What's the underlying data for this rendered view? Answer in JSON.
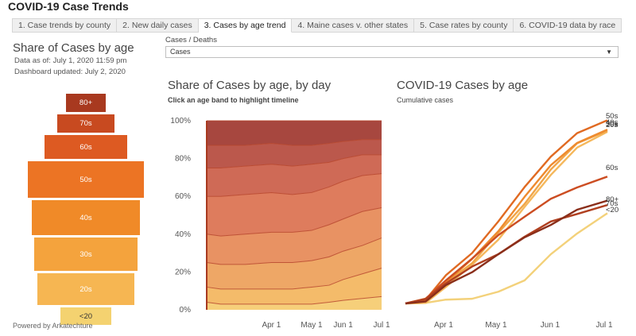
{
  "header": {
    "title": "COVID-19 Case Trends"
  },
  "tabs": [
    {
      "label": "1. Case trends by county",
      "active": false
    },
    {
      "label": "2. New daily cases",
      "active": false
    },
    {
      "label": "3. Cases by age trend",
      "active": true
    },
    {
      "label": "4. Maine cases v. other states",
      "active": false
    },
    {
      "label": "5. Case rates by county",
      "active": false
    },
    {
      "label": "6. COVID-19 data by race",
      "active": false
    }
  ],
  "left_panel": {
    "title": "Share of Cases by age",
    "data_as_of": "Data as of: July 1, 2020 11:59 pm",
    "dashboard_updated": "Dashboard updated: July 2, 2020",
    "footer": "Powered by Arkatechture",
    "pyramid": [
      {
        "label": "80+",
        "share": 0.082,
        "color": "#a8391f"
      },
      {
        "label": "70s",
        "share": 0.117,
        "color": "#c84a20"
      },
      {
        "label": "60s",
        "share": 0.168,
        "color": "#dd5a22"
      },
      {
        "label": "50s",
        "share": 0.235,
        "color": "#ec7424"
      },
      {
        "label": "40s",
        "share": 0.218,
        "color": "#f08a28"
      },
      {
        "label": "30s",
        "share": 0.21,
        "color": "#f4a33d"
      },
      {
        "label": "20s",
        "share": 0.196,
        "color": "#f6b652"
      },
      {
        "label": "<20",
        "share": 0.104,
        "color": "#f4d270"
      }
    ]
  },
  "filter": {
    "label": "Cases / Deaths",
    "selected": "Cases"
  },
  "chart_data": [
    {
      "type": "area",
      "title": "Share of Cases by age, by day",
      "subtitle": "Click an age band to highlight timeline",
      "y_tick_labels": [
        "0%",
        "20%",
        "40%",
        "60%",
        "80%",
        "100%"
      ],
      "ylim": [
        0,
        100
      ],
      "x_tick_labels": [
        "Apr 1",
        "May 1",
        "Jun 1",
        "Jul 1"
      ],
      "x": [
        "Mar 12",
        "Mar 15",
        "Mar 22",
        "Apr 1",
        "Apr 15",
        "May 1",
        "May 15",
        "Jun 1",
        "Jun 15",
        "Jul 1"
      ],
      "series_order_bottom_to_top": [
        "<20",
        "20s",
        "30s",
        "40s",
        "50s",
        "60s",
        "70s",
        "80+"
      ],
      "cumulative_upper_percent": [
        [
          4,
          3,
          3,
          3,
          3,
          3,
          4,
          5,
          6,
          7
        ],
        [
          12,
          11,
          11,
          11,
          11,
          12,
          13,
          16,
          19,
          22
        ],
        [
          25,
          24,
          24,
          25,
          25,
          26,
          28,
          31,
          34,
          38
        ],
        [
          40,
          39,
          40,
          41,
          41,
          42,
          45,
          48,
          52,
          54
        ],
        [
          60,
          60,
          61,
          62,
          61,
          62,
          65,
          68,
          71,
          72
        ],
        [
          75,
          75,
          76,
          77,
          76,
          77,
          78,
          80,
          82,
          82
        ],
        [
          87,
          87,
          87,
          88,
          87,
          87,
          88,
          89,
          90,
          90
        ],
        [
          100,
          100,
          100,
          100,
          100,
          100,
          100,
          100,
          100,
          100
        ]
      ],
      "colors": [
        "#f6cf7a",
        "#f4bb6a",
        "#eea766",
        "#e89263",
        "#de7c5d",
        "#cf6a56",
        "#bb584c",
        "#a7473f"
      ]
    },
    {
      "type": "line",
      "title": "COVID-19 Cases by age",
      "subtitle": "Cumulative cases",
      "x_tick_labels": [
        "Apr 1",
        "May 1",
        "Jun 1",
        "Jul 1"
      ],
      "x": [
        "Mar 12",
        "Mar 20",
        "Apr 1",
        "Apr 15",
        "May 1",
        "May 15",
        "Jun 1",
        "Jun 15",
        "Jul 1"
      ],
      "series": [
        {
          "name": "50s",
          "color": "#e06a22",
          "values": [
            0,
            8,
            50,
            95,
            150,
            210,
            270,
            310,
            335
          ]
        },
        {
          "name": "40s",
          "color": "#ee8a2e",
          "values": [
            0,
            6,
            40,
            80,
            135,
            195,
            250,
            295,
            318
          ]
        },
        {
          "name": "30s",
          "color": "#f0a548",
          "values": [
            0,
            5,
            35,
            75,
            128,
            185,
            245,
            290,
            316
          ]
        },
        {
          "name": "20s",
          "color": "#f5b85c",
          "values": [
            0,
            4,
            30,
            68,
            118,
            175,
            238,
            285,
            314
          ]
        },
        {
          "name": "60s",
          "color": "#cc4d22",
          "values": [
            0,
            7,
            45,
            82,
            122,
            160,
            190,
            215,
            232
          ]
        },
        {
          "name": "80+",
          "color": "#8a2e1a",
          "values": [
            0,
            5,
            32,
            60,
            90,
            118,
            145,
            170,
            188
          ]
        },
        {
          "name": "70s",
          "color": "#b03f1f",
          "values": [
            0,
            5,
            38,
            66,
            93,
            122,
            147,
            165,
            180
          ]
        },
        {
          "name": "<20",
          "color": "#f3d17a",
          "values": [
            0,
            1,
            4,
            10,
            20,
            45,
            90,
            125,
            165
          ]
        }
      ]
    }
  ]
}
